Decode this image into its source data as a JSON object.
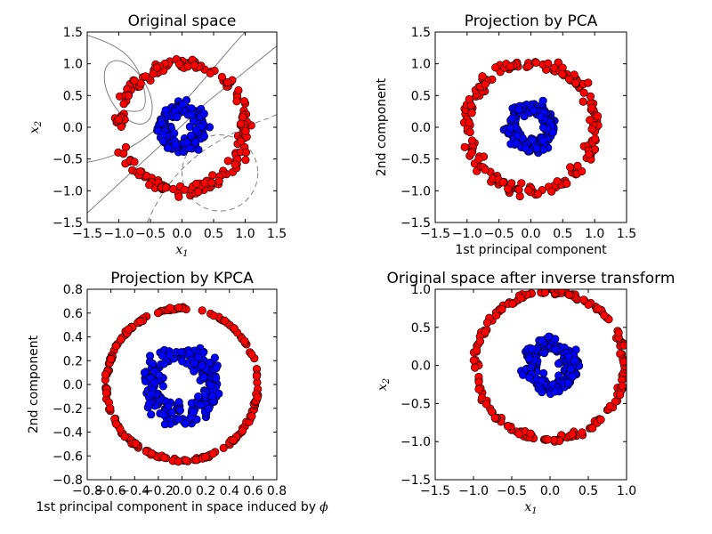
{
  "chart_data": [
    {
      "type": "scatter",
      "title": "Original space",
      "xlabel": "x",
      "xlabel_sub": "1",
      "ylabel": "x",
      "ylabel_sub": "2",
      "xlim": [
        -1.5,
        1.5
      ],
      "ylim": [
        -1.5,
        1.5
      ],
      "xticks": [
        "−1.5",
        "−1.0",
        "−0.5",
        "0.0",
        "0.5",
        "1.0",
        "1.5"
      ],
      "yticks": [
        "−1.5",
        "−1.0",
        "−0.5",
        "0.0",
        "0.5",
        "1.0",
        "1.5"
      ],
      "contours": true,
      "series": [
        {
          "color": "#ff0000",
          "shape": "ring",
          "radius": 1.0,
          "noise": 0.045,
          "count": 200
        },
        {
          "color": "#0000ff",
          "shape": "ring",
          "radius": 0.3,
          "noise": 0.05,
          "count": 200
        }
      ]
    },
    {
      "type": "scatter",
      "title": "Projection by PCA",
      "xlabel": "1st principal component",
      "ylabel": "2nd component",
      "xlim": [
        -1.5,
        1.5
      ],
      "ylim": [
        -1.5,
        1.5
      ],
      "xticks": [
        "−1.5",
        "−1.0",
        "−0.5",
        "0.0",
        "0.5",
        "1.0",
        "1.5"
      ],
      "yticks": [
        "−1.5",
        "−1.0",
        "−0.5",
        "0.0",
        "0.5",
        "1.0",
        "1.5"
      ],
      "series": [
        {
          "color": "#ff0000",
          "shape": "ring",
          "radius": 1.0,
          "noise": 0.045,
          "count": 200
        },
        {
          "color": "#0000ff",
          "shape": "ring",
          "radius": 0.3,
          "noise": 0.05,
          "count": 200
        }
      ]
    },
    {
      "type": "scatter",
      "title": "Projection by KPCA",
      "xlabel": "1st principal component in space induced by",
      "xlabel_symbol": "ϕ",
      "ylabel": "2nd component",
      "xlim": [
        -0.8,
        0.8
      ],
      "ylim": [
        -0.8,
        0.8
      ],
      "xticks": [
        "−0.8",
        "−0.6",
        "−0.4",
        "−0.2",
        "0.0",
        "0.2",
        "0.4",
        "0.6",
        "0.8"
      ],
      "yticks": [
        "−0.8",
        "−0.6",
        "−0.4",
        "−0.2",
        "0.0",
        "0.2",
        "0.4",
        "0.6",
        "0.8"
      ],
      "series": [
        {
          "color": "#ff0000",
          "shape": "ring",
          "radius": 0.64,
          "noise": 0.006,
          "count": 200
        },
        {
          "color": "#0000ff",
          "shape": "ring",
          "radius": 0.25,
          "noise": 0.05,
          "count": 200
        }
      ]
    },
    {
      "type": "scatter",
      "title": "Original space after inverse transform",
      "xlabel": "x",
      "xlabel_sub": "1",
      "ylabel": "x",
      "ylabel_sub": "2",
      "xlim": [
        -1.5,
        1.0
      ],
      "ylim": [
        -1.5,
        1.0
      ],
      "xticks": [
        "−1.5",
        "−1.0",
        "−0.5",
        "0.0",
        "0.5",
        "1.0"
      ],
      "yticks": [
        "−1.5",
        "−1.0",
        "−0.5",
        "0.0",
        "0.5",
        "1.0"
      ],
      "series": [
        {
          "color": "#ff0000",
          "shape": "ring",
          "radius": 0.97,
          "noise": 0.018,
          "count": 200
        },
        {
          "color": "#0000ff",
          "shape": "ring",
          "radius": 0.28,
          "noise": 0.05,
          "count": 200
        }
      ]
    }
  ]
}
